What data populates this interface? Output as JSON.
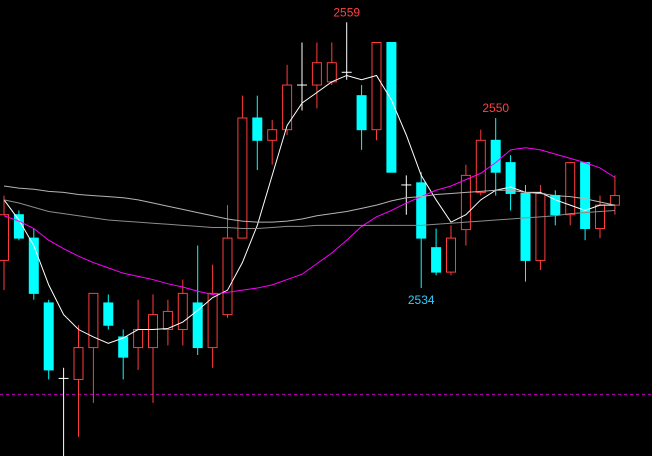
{
  "chart_data": {
    "type": "candlestick",
    "ylim": [
      2518.2,
      2561.1
    ],
    "up_color": "#ff3c3c",
    "down_color": "#00ffff",
    "doji_color": "#ffffff",
    "open": [
      2536.6,
      2540.9,
      2538.7,
      2532.6,
      2525.5,
      2525.4,
      2528.4,
      2532.6,
      2529.4,
      2528.4,
      2528.4,
      2530.1,
      2530.1,
      2532.6,
      2528.4,
      2531.5,
      2538.7,
      2550.0,
      2547.9,
      2548.9,
      2553.1,
      2553.1,
      2553.4,
      2554.3,
      2552.1,
      2548.9,
      2557.1,
      2543.7,
      2543.9,
      2537.8,
      2535.5,
      2539.5,
      2543.0,
      2547.9,
      2545.8,
      2542.9,
      2536.6,
      2542.7,
      2540.9,
      2545.8,
      2539.6,
      2541.8
    ],
    "high": [
      2542.7,
      2541.3,
      2539.6,
      2532.9,
      2526.5,
      2530.5,
      2533.5,
      2533.4,
      2530.1,
      2532.9,
      2533.4,
      2532.9,
      2534.8,
      2538.0,
      2536.2,
      2541.8,
      2552.1,
      2552.1,
      2549.8,
      2555.0,
      2557.1,
      2557.1,
      2557.1,
      2559.0,
      2553.1,
      2557.1,
      2557.1,
      2544.6,
      2544.9,
      2539.6,
      2539.9,
      2545.6,
      2548.9,
      2550.0,
      2546.5,
      2543.7,
      2543.7,
      2543.2,
      2545.8,
      2545.8,
      2542.7,
      2544.6
    ],
    "low": [
      2533.8,
      2538.5,
      2532.9,
      2525.4,
      2518.2,
      2520.0,
      2523.2,
      2530.1,
      2525.4,
      2526.3,
      2523.2,
      2528.6,
      2528.6,
      2527.7,
      2526.5,
      2531.2,
      2538.7,
      2545.1,
      2545.6,
      2548.4,
      2550.7,
      2550.9,
      2553.1,
      2553.6,
      2547.0,
      2547.9,
      2544.9,
      2540.9,
      2534.0,
      2535.2,
      2535.2,
      2538.0,
      2542.7,
      2542.7,
      2541.3,
      2534.6,
      2535.7,
      2539.9,
      2539.9,
      2538.5,
      2538.7,
      2540.9
    ],
    "close": [
      2540.9,
      2538.7,
      2533.5,
      2526.3,
      2525.5,
      2528.4,
      2533.5,
      2530.5,
      2527.5,
      2530.1,
      2531.5,
      2531.8,
      2533.5,
      2528.4,
      2533.5,
      2538.7,
      2550.0,
      2547.9,
      2548.9,
      2553.1,
      2553.1,
      2555.2,
      2555.2,
      2554.3,
      2548.9,
      2557.1,
      2544.9,
      2543.7,
      2538.7,
      2535.5,
      2538.7,
      2544.6,
      2547.9,
      2544.9,
      2542.9,
      2536.6,
      2542.9,
      2540.9,
      2545.8,
      2539.6,
      2541.8,
      2542.7
    ],
    "high_value_labels": [
      null,
      null,
      null,
      null,
      null,
      null,
      null,
      null,
      null,
      null,
      null,
      null,
      null,
      null,
      null,
      null,
      null,
      null,
      null,
      null,
      null,
      null,
      null,
      "2559",
      null,
      null,
      null,
      null,
      null,
      null,
      null,
      null,
      null,
      "2550",
      null,
      null,
      null,
      null,
      null,
      null,
      null,
      null
    ],
    "low_value_labels": [
      null,
      null,
      null,
      null,
      null,
      null,
      null,
      null,
      null,
      null,
      null,
      null,
      null,
      null,
      null,
      null,
      null,
      null,
      null,
      null,
      null,
      null,
      null,
      null,
      null,
      null,
      null,
      null,
      "2534",
      null,
      null,
      null,
      null,
      null,
      null,
      null,
      null,
      null,
      null,
      null,
      null,
      null
    ],
    "high_label_color": "#ff4040",
    "low_label_color": "#33ccff",
    "lines": [
      {
        "color": "#ffffff",
        "values": [
          2542.3,
          2540.4,
          2538.0,
          2534.3,
          2531.5,
          2530.1,
          2529.4,
          2528.8,
          2529.3,
          2530.1,
          2530.1,
          2530.2,
          2530.8,
          2531.9,
          2533.1,
          2533.8,
          2536.4,
          2539.9,
          2544.6,
          2549.3,
          2551.4,
          2552.4,
          2553.4,
          2554.0,
          2553.6,
          2554.0,
          2551.7,
          2548.4,
          2544.6,
          2542.3,
          2540.2,
          2540.9,
          2542.3,
          2543.2,
          2543.5,
          2543.0,
          2543.0,
          2542.3,
          2541.8,
          2541.3,
          2541.8,
          2541.8
        ]
      },
      {
        "color": "#ff00ff",
        "values": [
          2540.8,
          2540.3,
          2539.6,
          2538.5,
          2537.7,
          2537.0,
          2536.4,
          2535.9,
          2535.4,
          2535.1,
          2534.8,
          2534.4,
          2534.1,
          2533.7,
          2533.4,
          2533.6,
          2533.8,
          2534.0,
          2534.3,
          2534.8,
          2535.3,
          2536.3,
          2537.3,
          2538.5,
          2539.8,
          2540.7,
          2541.3,
          2542.0,
          2542.6,
          2543.2,
          2543.6,
          2544.2,
          2544.8,
          2545.8,
          2547.0,
          2547.2,
          2547.0,
          2546.6,
          2546.2,
          2545.8,
          2545.3,
          2544.4
        ]
      },
      {
        "color": "#b4b4b4",
        "values": [
          2543.6,
          2543.4,
          2543.3,
          2543.1,
          2543.0,
          2542.8,
          2542.7,
          2542.6,
          2542.5,
          2542.3,
          2542.0,
          2541.7,
          2541.4,
          2541.1,
          2540.8,
          2540.5,
          2540.3,
          2540.2,
          2540.2,
          2540.3,
          2540.5,
          2540.8,
          2541.0,
          2541.2,
          2541.5,
          2541.8,
          2542.2,
          2542.5,
          2542.6,
          2542.8,
          2542.9,
          2543.0,
          2543.1,
          2543.2,
          2543.2,
          2543.0,
          2542.9,
          2542.7,
          2542.6,
          2542.4,
          2542.1,
          2541.8
        ]
      },
      {
        "color": "#8c8c8c",
        "values": [
          2542.3,
          2542.0,
          2541.6,
          2541.2,
          2541.0,
          2540.8,
          2540.6,
          2540.4,
          2540.3,
          2540.2,
          2540.1,
          2540.0,
          2539.9,
          2539.8,
          2539.7,
          2539.7,
          2539.6,
          2539.6,
          2539.7,
          2539.8,
          2539.8,
          2539.9,
          2539.9,
          2539.9,
          2539.9,
          2539.9,
          2539.9,
          2539.9,
          2539.9,
          2540.0,
          2540.1,
          2540.2,
          2540.3,
          2540.4,
          2540.5,
          2540.6,
          2540.7,
          2540.8,
          2541.0,
          2541.1,
          2541.2,
          2541.3
        ]
      }
    ],
    "reference_line": 2524,
    "reference_color": "#c000c0"
  }
}
